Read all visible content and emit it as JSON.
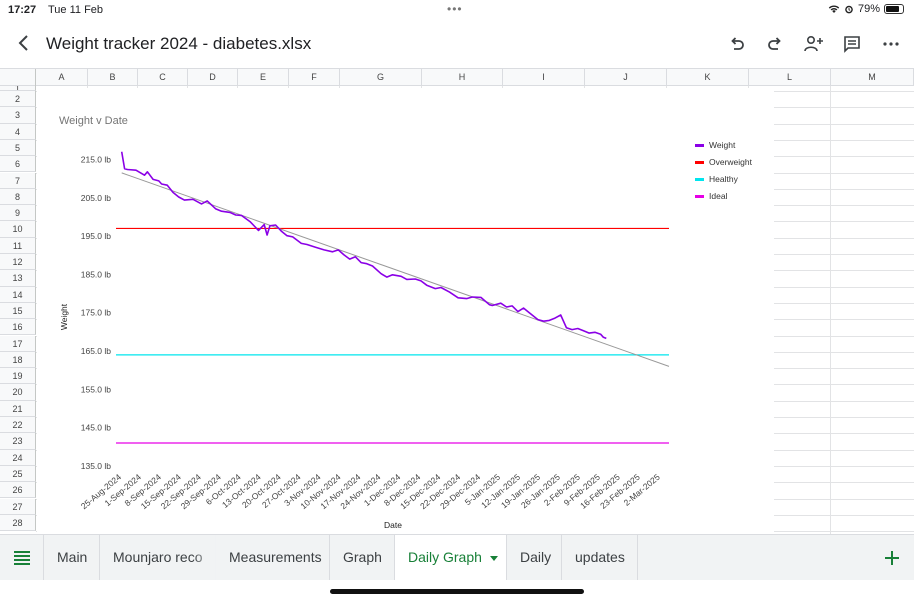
{
  "status_bar": {
    "time": "17:27",
    "date": "Tue 11 Feb",
    "battery": "79%",
    "battery_level": 0.79
  },
  "header": {
    "title": "Weight tracker 2024 - diabetes.xlsx"
  },
  "toolbar_icons": [
    "undo-icon",
    "redo-icon",
    "add-person-icon",
    "comment-icon",
    "more-icon"
  ],
  "grid": {
    "columns": [
      "A",
      "B",
      "C",
      "D",
      "E",
      "F",
      "G",
      "H",
      "I",
      "J",
      "K",
      "L",
      "M"
    ],
    "rows": [
      "1",
      "2",
      "3",
      "4",
      "5",
      "6",
      "7",
      "8",
      "9",
      "10",
      "11",
      "12",
      "13",
      "14",
      "15",
      "16",
      "17",
      "18",
      "19",
      "20",
      "21",
      "22",
      "23",
      "24",
      "25",
      "26",
      "27",
      "28"
    ]
  },
  "chart_data": {
    "type": "line",
    "title": "Weight v Date",
    "xlabel": "Date",
    "ylabel": "Weight",
    "ylim": [
      135,
      218
    ],
    "xlim": [
      "2024-08-23",
      "2025-03-05"
    ],
    "y_ticks": [
      "215.0 lb",
      "205.0 lb",
      "195.0 lb",
      "185.0 lb",
      "175.0 lb",
      "165.0 lb",
      "155.0 lb",
      "145.0 lb",
      "135.0 lb"
    ],
    "y_tick_values": [
      215,
      205,
      195,
      185,
      175,
      165,
      155,
      145,
      135
    ],
    "x_ticks": [
      "25-Aug-2024",
      "1-Sep-2024",
      "8-Sep-2024",
      "15-Sep-2024",
      "22-Sep-2024",
      "29-Sep-2024",
      "6-Oct-2024",
      "13-Oct-2024",
      "20-Oct-2024",
      "27-Oct-2024",
      "3-Nov-2024",
      "10-Nov-2024",
      "17-Nov-2024",
      "24-Nov-2024",
      "1-Dec-2024",
      "8-Dec-2024",
      "15-Dec-2024",
      "22-Dec-2024",
      "29-Dec-2024",
      "5-Jan-2025",
      "12-Jan-2025",
      "19-Jan-2025",
      "26-Jan-2025",
      "2-Feb-2025",
      "9-Feb-2025",
      "16-Feb-2025",
      "23-Feb-2025",
      "2-Mar-2025"
    ],
    "x_tick_dates": [
      "2024-08-25",
      "2024-09-01",
      "2024-09-08",
      "2024-09-15",
      "2024-09-22",
      "2024-09-29",
      "2024-10-06",
      "2024-10-13",
      "2024-10-20",
      "2024-10-27",
      "2024-11-03",
      "2024-11-10",
      "2024-11-17",
      "2024-11-24",
      "2024-12-01",
      "2024-12-08",
      "2024-12-15",
      "2024-12-22",
      "2024-12-29",
      "2025-01-05",
      "2025-01-12",
      "2025-01-19",
      "2025-01-26",
      "2025-02-02",
      "2025-02-09",
      "2025-02-16",
      "2025-02-23",
      "2025-03-02"
    ],
    "legend": "right",
    "series": [
      {
        "name": "Weight",
        "color": "#8a00e6",
        "x": [
          "2024-08-25",
          "2024-08-26",
          "2024-08-27",
          "2024-08-30",
          "2024-09-02",
          "2024-09-03",
          "2024-09-05",
          "2024-09-07",
          "2024-09-08",
          "2024-09-10",
          "2024-09-12",
          "2024-09-14",
          "2024-09-16",
          "2024-09-19",
          "2024-09-22",
          "2024-09-24",
          "2024-09-27",
          "2024-09-29",
          "2024-10-02",
          "2024-10-04",
          "2024-10-06",
          "2024-10-09",
          "2024-10-12",
          "2024-10-14",
          "2024-10-15",
          "2024-10-16",
          "2024-10-18",
          "2024-10-20",
          "2024-10-22",
          "2024-10-24",
          "2024-10-27",
          "2024-10-29",
          "2024-11-01",
          "2024-11-04",
          "2024-11-07",
          "2024-11-09",
          "2024-11-11",
          "2024-11-13",
          "2024-11-15",
          "2024-11-17",
          "2024-11-19",
          "2024-11-21",
          "2024-11-24",
          "2024-11-26",
          "2024-11-28",
          "2024-12-01",
          "2024-12-03",
          "2024-12-06",
          "2024-12-08",
          "2024-12-10",
          "2024-12-13",
          "2024-12-15",
          "2024-12-18",
          "2024-12-21",
          "2024-12-24",
          "2024-12-26",
          "2024-12-29",
          "2025-01-01",
          "2025-01-02",
          "2025-01-05",
          "2025-01-07",
          "2025-01-09",
          "2025-01-11",
          "2025-01-13",
          "2025-01-15",
          "2025-01-18",
          "2025-01-20",
          "2025-01-22",
          "2025-01-24",
          "2025-01-26",
          "2025-01-28",
          "2025-01-30",
          "2025-02-01",
          "2025-02-03",
          "2025-02-05",
          "2025-02-07",
          "2025-02-09",
          "2025-02-10",
          "2025-02-11"
        ],
        "values": [
          217.0,
          212.6,
          212.4,
          212.2,
          210.9,
          211.8,
          209.8,
          209.4,
          208.6,
          208.3,
          206.4,
          205.2,
          204.4,
          204.6,
          203.4,
          204.2,
          202.1,
          201.5,
          201.2,
          200.5,
          200.4,
          198.8,
          196.5,
          198.0,
          195.3,
          197.7,
          197.9,
          196.3,
          195.1,
          194.8,
          193.1,
          192.8,
          192.1,
          191.4,
          190.9,
          191.4,
          190.1,
          189.0,
          189.6,
          188.1,
          187.8,
          187.2,
          185.2,
          184.3,
          184.9,
          184.5,
          183.7,
          183.8,
          183.3,
          182.2,
          181.3,
          181.6,
          180.4,
          178.9,
          178.7,
          179.1,
          179.0,
          177.1,
          176.9,
          177.5,
          176.5,
          176.8,
          175.3,
          176.2,
          175.0,
          173.2,
          172.8,
          173.0,
          173.6,
          174.4,
          171.1,
          170.6,
          170.9,
          170.3,
          169.7,
          169.9,
          169.4,
          168.6,
          168.3
        ]
      },
      {
        "name": "Overweight",
        "color": "#ff0000",
        "y": 197.0
      },
      {
        "name": "Healthy",
        "color": "#00e5ee",
        "y": 164.0
      },
      {
        "name": "Ideal",
        "color": "#e600e6",
        "y": 141.0
      }
    ],
    "trendline": {
      "color": "#999999",
      "x": [
        "2024-08-25",
        "2025-03-05"
      ],
      "values": [
        211.5,
        161.0
      ]
    }
  },
  "tabs": [
    {
      "label": "Main",
      "active": false
    },
    {
      "label": "Mounjaro reco",
      "active": false
    },
    {
      "label": "Measurements",
      "active": false
    },
    {
      "label": "Graph",
      "active": false
    },
    {
      "label": "Daily Graph",
      "active": true
    },
    {
      "label": "Daily",
      "active": false
    },
    {
      "label": "updates",
      "active": false
    }
  ],
  "accent_color": "#188038"
}
